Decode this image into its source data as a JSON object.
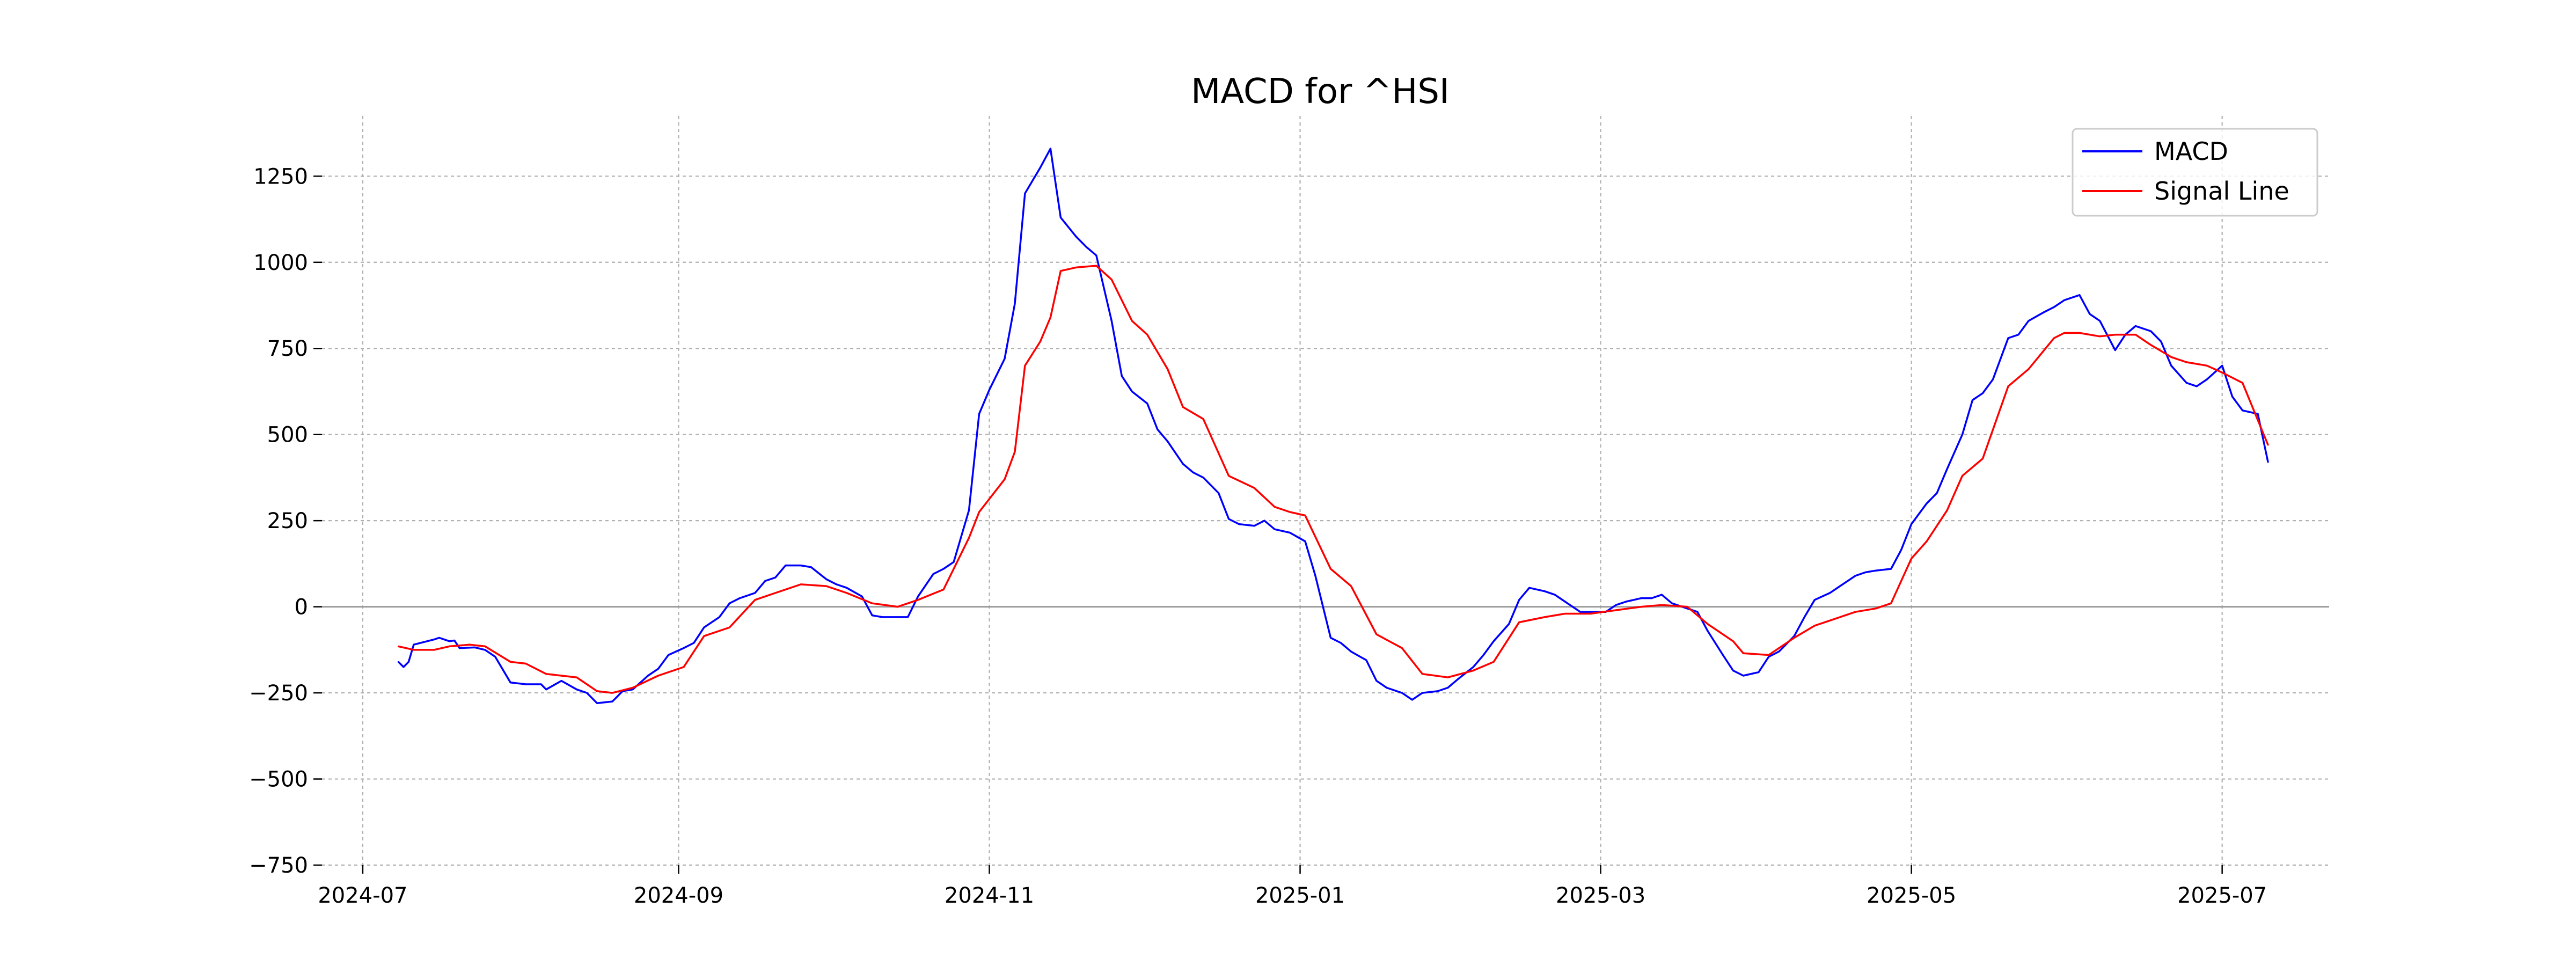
{
  "chart_data": {
    "type": "line",
    "title": "MACD for ^HSI",
    "xlabel": "",
    "ylabel": "",
    "ylim": [
      -750,
      1425
    ],
    "xlim": [
      "2024-06-23",
      "2025-07-22"
    ],
    "grid": true,
    "legend_position": "top-right",
    "x_ticks": [
      "2024-07",
      "2024-09",
      "2024-11",
      "2025-01",
      "2025-03",
      "2025-05",
      "2025-07"
    ],
    "y_ticks": [
      -750,
      -500,
      -250,
      0,
      250,
      500,
      750,
      1000,
      1250
    ],
    "zero_line": 0,
    "series": [
      {
        "name": "MACD",
        "color": "#0000ff",
        "points": [
          [
            "2024-07-08",
            -160
          ],
          [
            "2024-07-09",
            -175
          ],
          [
            "2024-07-10",
            -160
          ],
          [
            "2024-07-11",
            -110
          ],
          [
            "2024-07-15",
            -95
          ],
          [
            "2024-07-16",
            -90
          ],
          [
            "2024-07-18",
            -100
          ],
          [
            "2024-07-19",
            -98
          ],
          [
            "2024-07-20",
            -120
          ],
          [
            "2024-07-23",
            -118
          ],
          [
            "2024-07-25",
            -125
          ],
          [
            "2024-07-27",
            -145
          ],
          [
            "2024-07-30",
            -220
          ],
          [
            "2024-08-02",
            -225
          ],
          [
            "2024-08-05",
            -225
          ],
          [
            "2024-08-06",
            -240
          ],
          [
            "2024-08-09",
            -215
          ],
          [
            "2024-08-12",
            -240
          ],
          [
            "2024-08-14",
            -250
          ],
          [
            "2024-08-16",
            -280
          ],
          [
            "2024-08-19",
            -275
          ],
          [
            "2024-08-21",
            -245
          ],
          [
            "2024-08-23",
            -240
          ],
          [
            "2024-08-26",
            -200
          ],
          [
            "2024-08-28",
            -180
          ],
          [
            "2024-08-30",
            -140
          ],
          [
            "2024-09-02",
            -120
          ],
          [
            "2024-09-04",
            -105
          ],
          [
            "2024-09-06",
            -60
          ],
          [
            "2024-09-09",
            -30
          ],
          [
            "2024-09-11",
            10
          ],
          [
            "2024-09-13",
            25
          ],
          [
            "2024-09-16",
            40
          ],
          [
            "2024-09-18",
            75
          ],
          [
            "2024-09-20",
            85
          ],
          [
            "2024-09-22",
            120
          ],
          [
            "2024-09-25",
            120
          ],
          [
            "2024-09-27",
            115
          ],
          [
            "2024-09-30",
            80
          ],
          [
            "2024-10-02",
            65
          ],
          [
            "2024-10-04",
            55
          ],
          [
            "2024-10-07",
            30
          ],
          [
            "2024-10-09",
            -25
          ],
          [
            "2024-10-11",
            -30
          ],
          [
            "2024-10-14",
            -30
          ],
          [
            "2024-10-16",
            -30
          ],
          [
            "2024-10-18",
            30
          ],
          [
            "2024-10-21",
            95
          ],
          [
            "2024-10-23",
            110
          ],
          [
            "2024-10-25",
            130
          ],
          [
            "2024-10-28",
            280
          ],
          [
            "2024-10-30",
            560
          ],
          [
            "2024-11-01",
            630
          ],
          [
            "2024-11-04",
            720
          ],
          [
            "2024-11-06",
            880
          ],
          [
            "2024-11-08",
            1200
          ],
          [
            "2024-11-11",
            1275
          ],
          [
            "2024-11-13",
            1330
          ],
          [
            "2024-11-15",
            1130
          ],
          [
            "2024-11-18",
            1075
          ],
          [
            "2024-11-20",
            1045
          ],
          [
            "2024-11-22",
            1020
          ],
          [
            "2024-11-25",
            830
          ],
          [
            "2024-11-27",
            670
          ],
          [
            "2024-11-29",
            625
          ],
          [
            "2024-12-02",
            590
          ],
          [
            "2024-12-04",
            515
          ],
          [
            "2024-12-06",
            480
          ],
          [
            "2024-12-09",
            415
          ],
          [
            "2024-12-11",
            390
          ],
          [
            "2024-12-13",
            375
          ],
          [
            "2024-12-16",
            330
          ],
          [
            "2024-12-18",
            255
          ],
          [
            "2024-12-20",
            240
          ],
          [
            "2024-12-23",
            235
          ],
          [
            "2024-12-25",
            250
          ],
          [
            "2024-12-27",
            225
          ],
          [
            "2024-12-30",
            215
          ],
          [
            "2025-01-02",
            190
          ],
          [
            "2025-01-04",
            90
          ],
          [
            "2025-01-07",
            -90
          ],
          [
            "2025-01-09",
            -105
          ],
          [
            "2025-01-11",
            -130
          ],
          [
            "2025-01-14",
            -155
          ],
          [
            "2025-01-16",
            -215
          ],
          [
            "2025-01-18",
            -235
          ],
          [
            "2025-01-21",
            -250
          ],
          [
            "2025-01-23",
            -270
          ],
          [
            "2025-01-25",
            -250
          ],
          [
            "2025-01-28",
            -245
          ],
          [
            "2025-01-30",
            -235
          ],
          [
            "2025-02-01",
            -210
          ],
          [
            "2025-02-04",
            -175
          ],
          [
            "2025-02-06",
            -140
          ],
          [
            "2025-02-08",
            -100
          ],
          [
            "2025-02-11",
            -50
          ],
          [
            "2025-02-13",
            20
          ],
          [
            "2025-02-15",
            55
          ],
          [
            "2025-02-18",
            45
          ],
          [
            "2025-02-20",
            35
          ],
          [
            "2025-02-22",
            15
          ],
          [
            "2025-02-25",
            -15
          ],
          [
            "2025-02-27",
            -15
          ],
          [
            "2025-03-02",
            -15
          ],
          [
            "2025-03-04",
            5
          ],
          [
            "2025-03-06",
            15
          ],
          [
            "2025-03-09",
            25
          ],
          [
            "2025-03-11",
            25
          ],
          [
            "2025-03-13",
            35
          ],
          [
            "2025-03-15",
            10
          ],
          [
            "2025-03-18",
            -5
          ],
          [
            "2025-03-20",
            -15
          ],
          [
            "2025-03-22",
            -70
          ],
          [
            "2025-03-25",
            -140
          ],
          [
            "2025-03-27",
            -185
          ],
          [
            "2025-03-29",
            -200
          ],
          [
            "2025-04-01",
            -190
          ],
          [
            "2025-04-03",
            -145
          ],
          [
            "2025-04-05",
            -130
          ],
          [
            "2025-04-08",
            -85
          ],
          [
            "2025-04-10",
            -30
          ],
          [
            "2025-04-12",
            20
          ],
          [
            "2025-04-15",
            40
          ],
          [
            "2025-04-17",
            60
          ],
          [
            "2025-04-20",
            90
          ],
          [
            "2025-04-22",
            100
          ],
          [
            "2025-04-24",
            105
          ],
          [
            "2025-04-27",
            110
          ],
          [
            "2025-04-29",
            165
          ],
          [
            "2025-05-01",
            240
          ],
          [
            "2025-05-04",
            300
          ],
          [
            "2025-05-06",
            330
          ],
          [
            "2025-05-08",
            400
          ],
          [
            "2025-05-11",
            500
          ],
          [
            "2025-05-13",
            600
          ],
          [
            "2025-05-15",
            620
          ],
          [
            "2025-05-17",
            660
          ],
          [
            "2025-05-20",
            780
          ],
          [
            "2025-05-22",
            790
          ],
          [
            "2025-05-24",
            830
          ],
          [
            "2025-05-27",
            855
          ],
          [
            "2025-05-29",
            870
          ],
          [
            "2025-05-31",
            890
          ],
          [
            "2025-06-03",
            905
          ],
          [
            "2025-06-05",
            850
          ],
          [
            "2025-06-07",
            830
          ],
          [
            "2025-06-10",
            745
          ],
          [
            "2025-06-12",
            790
          ],
          [
            "2025-06-14",
            815
          ],
          [
            "2025-06-17",
            800
          ],
          [
            "2025-06-19",
            770
          ],
          [
            "2025-06-21",
            700
          ],
          [
            "2025-06-24",
            650
          ],
          [
            "2025-06-26",
            640
          ],
          [
            "2025-06-28",
            660
          ],
          [
            "2025-07-01",
            700
          ],
          [
            "2025-07-03",
            610
          ],
          [
            "2025-07-05",
            570
          ],
          [
            "2025-07-08",
            560
          ],
          [
            "2025-07-10",
            420
          ]
        ]
      },
      {
        "name": "Signal Line",
        "color": "#ff0000",
        "points": [
          [
            "2024-07-08",
            -115
          ],
          [
            "2024-07-11",
            -125
          ],
          [
            "2024-07-15",
            -125
          ],
          [
            "2024-07-18",
            -115
          ],
          [
            "2024-07-22",
            -110
          ],
          [
            "2024-07-25",
            -115
          ],
          [
            "2024-07-30",
            -160
          ],
          [
            "2024-08-02",
            -165
          ],
          [
            "2024-08-06",
            -195
          ],
          [
            "2024-08-12",
            -205
          ],
          [
            "2024-08-16",
            -245
          ],
          [
            "2024-08-19",
            -250
          ],
          [
            "2024-08-23",
            -235
          ],
          [
            "2024-08-28",
            -200
          ],
          [
            "2024-09-02",
            -175
          ],
          [
            "2024-09-06",
            -85
          ],
          [
            "2024-09-11",
            -60
          ],
          [
            "2024-09-16",
            20
          ],
          [
            "2024-09-20",
            40
          ],
          [
            "2024-09-25",
            65
          ],
          [
            "2024-09-30",
            60
          ],
          [
            "2024-10-04",
            40
          ],
          [
            "2024-10-09",
            10
          ],
          [
            "2024-10-14",
            0
          ],
          [
            "2024-10-18",
            20
          ],
          [
            "2024-10-23",
            50
          ],
          [
            "2024-10-28",
            200
          ],
          [
            "2024-10-30",
            275
          ],
          [
            "2024-11-04",
            370
          ],
          [
            "2024-11-06",
            450
          ],
          [
            "2024-11-08",
            700
          ],
          [
            "2024-11-11",
            770
          ],
          [
            "2024-11-13",
            840
          ],
          [
            "2024-11-15",
            975
          ],
          [
            "2024-11-18",
            985
          ],
          [
            "2024-11-22",
            990
          ],
          [
            "2024-11-25",
            950
          ],
          [
            "2024-11-29",
            830
          ],
          [
            "2024-12-02",
            790
          ],
          [
            "2024-12-06",
            690
          ],
          [
            "2024-12-09",
            580
          ],
          [
            "2024-12-13",
            545
          ],
          [
            "2024-12-18",
            380
          ],
          [
            "2024-12-23",
            345
          ],
          [
            "2024-12-27",
            290
          ],
          [
            "2024-12-30",
            275
          ],
          [
            "2025-01-02",
            265
          ],
          [
            "2025-01-07",
            110
          ],
          [
            "2025-01-11",
            60
          ],
          [
            "2025-01-16",
            -80
          ],
          [
            "2025-01-21",
            -120
          ],
          [
            "2025-01-25",
            -195
          ],
          [
            "2025-01-30",
            -205
          ],
          [
            "2025-02-04",
            -185
          ],
          [
            "2025-02-08",
            -160
          ],
          [
            "2025-02-13",
            -45
          ],
          [
            "2025-02-18",
            -30
          ],
          [
            "2025-02-22",
            -20
          ],
          [
            "2025-02-27",
            -20
          ],
          [
            "2025-03-04",
            -10
          ],
          [
            "2025-03-09",
            0
          ],
          [
            "2025-03-13",
            5
          ],
          [
            "2025-03-18",
            0
          ],
          [
            "2025-03-22",
            -50
          ],
          [
            "2025-03-27",
            -100
          ],
          [
            "2025-03-29",
            -135
          ],
          [
            "2025-04-03",
            -140
          ],
          [
            "2025-04-08",
            -90
          ],
          [
            "2025-04-12",
            -55
          ],
          [
            "2025-04-15",
            -40
          ],
          [
            "2025-04-20",
            -15
          ],
          [
            "2025-04-24",
            -5
          ],
          [
            "2025-04-27",
            10
          ],
          [
            "2025-05-01",
            140
          ],
          [
            "2025-05-04",
            190
          ],
          [
            "2025-05-08",
            280
          ],
          [
            "2025-05-11",
            380
          ],
          [
            "2025-05-15",
            430
          ],
          [
            "2025-05-20",
            640
          ],
          [
            "2025-05-24",
            690
          ],
          [
            "2025-05-29",
            780
          ],
          [
            "2025-05-31",
            795
          ],
          [
            "2025-06-03",
            795
          ],
          [
            "2025-06-07",
            785
          ],
          [
            "2025-06-10",
            790
          ],
          [
            "2025-06-14",
            790
          ],
          [
            "2025-06-17",
            760
          ],
          [
            "2025-06-21",
            725
          ],
          [
            "2025-06-24",
            710
          ],
          [
            "2025-06-28",
            700
          ],
          [
            "2025-07-01",
            680
          ],
          [
            "2025-07-05",
            650
          ],
          [
            "2025-07-10",
            470
          ]
        ]
      }
    ]
  }
}
